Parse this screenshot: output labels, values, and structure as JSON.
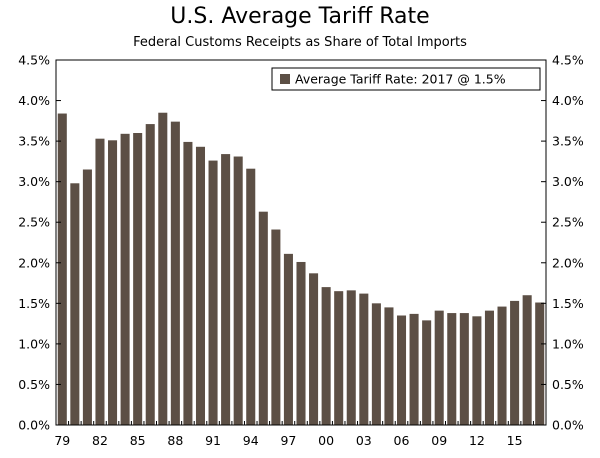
{
  "chart_data": {
    "type": "bar",
    "title": "U.S. Average Tariff Rate",
    "subtitle": "Federal Customs Receipts as Share of Total Imports",
    "xlabel": "",
    "ylabel": "",
    "categories": [
      "1979",
      "1980",
      "1981",
      "1982",
      "1983",
      "1984",
      "1985",
      "1986",
      "1987",
      "1988",
      "1989",
      "1990",
      "1991",
      "1992",
      "1993",
      "1994",
      "1995",
      "1996",
      "1997",
      "1998",
      "1999",
      "2000",
      "2001",
      "2002",
      "2003",
      "2004",
      "2005",
      "2006",
      "2007",
      "2008",
      "2009",
      "2010",
      "2011",
      "2012",
      "2013",
      "2014",
      "2015",
      "2016",
      "2017"
    ],
    "x_tick_labels": [
      "79",
      "82",
      "85",
      "88",
      "91",
      "94",
      "97",
      "00",
      "03",
      "06",
      "09",
      "12",
      "15"
    ],
    "x_tick_every": 3,
    "series": [
      {
        "name": "Average Tariff Rate: 2017 @ 1.5%",
        "color": "#5c4f45",
        "values": [
          3.84,
          2.98,
          3.15,
          3.53,
          3.51,
          3.59,
          3.6,
          3.71,
          3.85,
          3.74,
          3.49,
          3.43,
          3.26,
          3.34,
          3.31,
          3.16,
          2.63,
          2.41,
          2.11,
          2.01,
          1.87,
          1.7,
          1.65,
          1.66,
          1.62,
          1.5,
          1.45,
          1.35,
          1.37,
          1.29,
          1.41,
          1.38,
          1.38,
          1.34,
          1.41,
          1.46,
          1.53,
          1.6,
          1.51
        ]
      }
    ],
    "ylim": [
      0,
      4.5
    ],
    "y_ticks": [
      "0.0%",
      "0.5%",
      "1.0%",
      "1.5%",
      "2.0%",
      "2.5%",
      "3.0%",
      "3.5%",
      "4.0%",
      "4.5%"
    ],
    "y_axis_sides": "both",
    "grid": false,
    "legend_position": "top-right"
  }
}
